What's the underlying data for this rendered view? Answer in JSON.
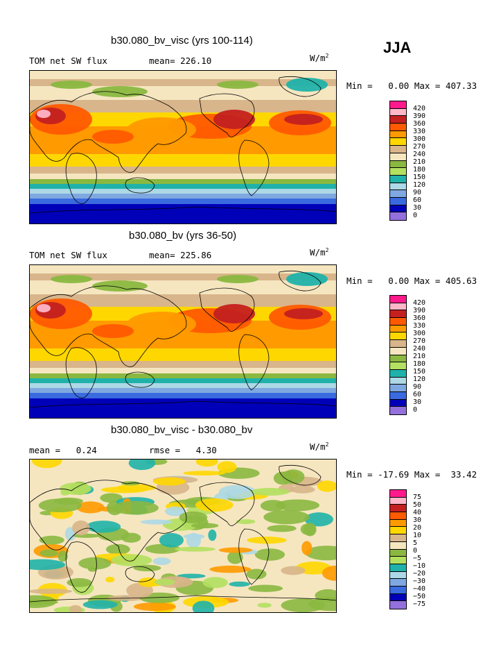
{
  "season": "JJA",
  "panels": [
    {
      "title": "b30.080_bv_visc (yrs 100-114)",
      "left_label": "TOM net SW flux",
      "stat_label": "mean= 226.10",
      "units_base": "W/m",
      "units_exp": "2",
      "minmax": "Min =   0.00 Max = 407.33",
      "kind": "absolute"
    },
    {
      "title": "b30.080_bv (yrs 36-50)",
      "left_label": "TOM net SW flux",
      "stat_label": "mean= 225.86",
      "units_base": "W/m",
      "units_exp": "2",
      "minmax": "Min =   0.00 Max = 405.63",
      "kind": "absolute"
    },
    {
      "title": "b30.080_bv_visc - b30.080_bv",
      "left_label": "mean =   0.24",
      "stat_label": "rmse =   4.30",
      "units_base": "W/m",
      "units_exp": "2",
      "minmax": "Min = -17.69 Max =  33.42",
      "kind": "difference"
    }
  ],
  "colorbar_abs": {
    "labels": [
      "420",
      "390",
      "360",
      "330",
      "300",
      "270",
      "240",
      "210",
      "180",
      "150",
      "120",
      "90",
      "60",
      "30",
      "0"
    ],
    "colors": [
      "#ff1a8c",
      "#ffb6c8",
      "#c42020",
      "#ff5a00",
      "#ff9a00",
      "#ffd700",
      "#d8b58a",
      "#f5e6c0",
      "#8ab840",
      "#b3e060",
      "#20b2aa",
      "#add8e6",
      "#7fa8e0",
      "#3a6ae0",
      "#0000b8",
      "#9370db"
    ]
  },
  "colorbar_diff": {
    "labels": [
      "75",
      "50",
      "40",
      "30",
      "20",
      "10",
      "5",
      "0",
      "−5",
      "−10",
      "−20",
      "−30",
      "−40",
      "−50",
      "−75"
    ],
    "colors": [
      "#ff1a8c",
      "#ffb6c8",
      "#c42020",
      "#ff5a00",
      "#ff9a00",
      "#ffd700",
      "#d8b58a",
      "#f5e6c0",
      "#8ab840",
      "#b3e060",
      "#20b2aa",
      "#add8e6",
      "#7fa8e0",
      "#3a6ae0",
      "#0000b8",
      "#9370db"
    ]
  },
  "chart_data": [
    {
      "type": "heatmap",
      "title": "b30.080_bv_visc (yrs 100-114)",
      "field": "TOM net SW flux",
      "units": "W/m2",
      "season": "JJA",
      "mean": 226.1,
      "min": 0.0,
      "max": 407.33,
      "contour_levels": [
        0,
        30,
        60,
        90,
        120,
        150,
        180,
        210,
        240,
        270,
        300,
        330,
        360,
        390,
        420
      ]
    },
    {
      "type": "heatmap",
      "title": "b30.080_bv (yrs 36-50)",
      "field": "TOM net SW flux",
      "units": "W/m2",
      "season": "JJA",
      "mean": 225.86,
      "min": 0.0,
      "max": 405.63,
      "contour_levels": [
        0,
        30,
        60,
        90,
        120,
        150,
        180,
        210,
        240,
        270,
        300,
        330,
        360,
        390,
        420
      ]
    },
    {
      "type": "heatmap",
      "title": "b30.080_bv_visc - b30.080_bv",
      "units": "W/m2",
      "season": "JJA",
      "mean": 0.24,
      "rmse": 4.3,
      "min": -17.69,
      "max": 33.42,
      "contour_levels": [
        -75,
        -50,
        -40,
        -30,
        -20,
        -10,
        -5,
        0,
        5,
        10,
        20,
        30,
        40,
        50,
        75
      ]
    }
  ]
}
